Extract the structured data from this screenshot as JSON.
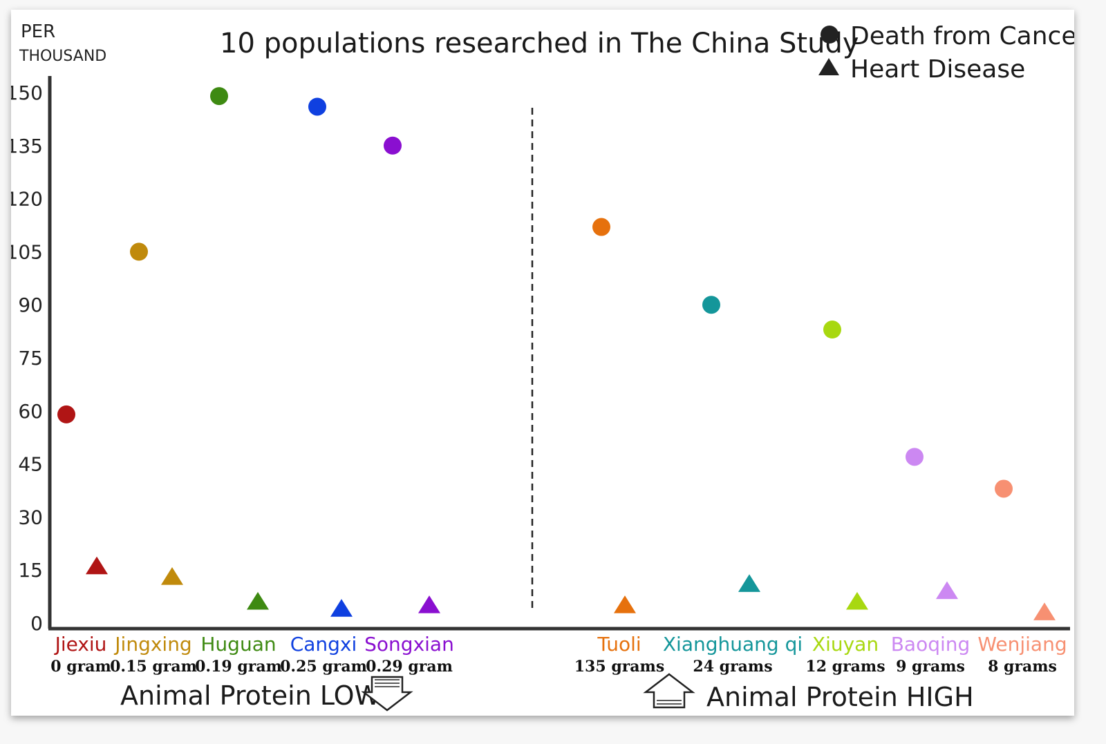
{
  "chart_data": {
    "type": "scatter",
    "title": "10 populations researched in The China Study",
    "ylabel": "PER THOUSAND",
    "ylabel_lines": [
      "PER",
      "THOUSAND"
    ],
    "ylim": [
      0,
      150
    ],
    "yticks": [
      0,
      15,
      30,
      45,
      60,
      75,
      90,
      105,
      120,
      135,
      150
    ],
    "legend": [
      {
        "marker": "circle",
        "label": "Death from Cancer"
      },
      {
        "marker": "triangle",
        "label": "Heart Disease"
      }
    ],
    "legend_position": "top-right",
    "groups": [
      {
        "label": "Animal Protein LOW",
        "arrow": "down"
      },
      {
        "label": "Animal Protein HIGH",
        "arrow": "up"
      }
    ],
    "divider": "dashed vertical line between LOW and HIGH groups",
    "series": [
      {
        "name": "Death from Cancer",
        "marker": "circle",
        "values": [
          59,
          105,
          149,
          146,
          135,
          112,
          90,
          83,
          47,
          38
        ]
      },
      {
        "name": "Heart Disease",
        "marker": "triangle",
        "values": [
          16,
          13,
          6,
          4,
          5,
          5,
          11,
          6,
          9,
          3
        ]
      }
    ],
    "populations": [
      {
        "name": "Jiexiu",
        "protein": "0 gram",
        "group": 0,
        "color": "#b01515"
      },
      {
        "name": "Jingxing",
        "protein": "0.15 gram",
        "group": 0,
        "color": "#c08a0c"
      },
      {
        "name": "Huguan",
        "protein": "0.19 gram",
        "group": 0,
        "color": "#3e8a12"
      },
      {
        "name": "Cangxi",
        "protein": "0.25 gram",
        "group": 0,
        "color": "#0f40e0"
      },
      {
        "name": "Songxian",
        "protein": "0.29 gram",
        "group": 0,
        "color": "#8a0fd0"
      },
      {
        "name": "Tuoli",
        "protein": "135 grams",
        "group": 1,
        "color": "#e6710d"
      },
      {
        "name": "Xianghuang qi",
        "protein": "24 grams",
        "group": 1,
        "color": "#14969a"
      },
      {
        "name": "Xiuyan",
        "protein": "12 grams",
        "group": 1,
        "color": "#a8d810"
      },
      {
        "name": "Baoqing",
        "protein": "9 grams",
        "group": 1,
        "color": "#cc88f2"
      },
      {
        "name": "Wenjiang",
        "protein": "8 grams",
        "group": 1,
        "color": "#f79072"
      }
    ]
  }
}
